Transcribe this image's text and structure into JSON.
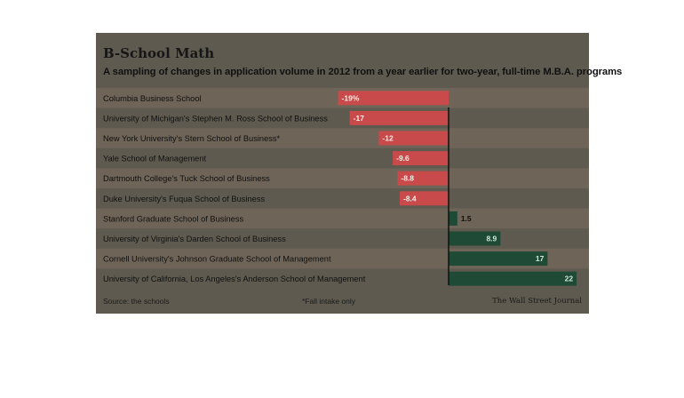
{
  "title": "B-School Math",
  "subtitle": "A sampling of changes in application volume in 2012 from a year earlier for two-year, full-time M.B.A. programs",
  "source": "Source: the schools",
  "footnote": "*Fall intake only",
  "publisher": "The Wall Street Journal",
  "colors": {
    "negative_bar": "#c94a4a",
    "negative_bar_highlight": "#f0353d",
    "positive_bar": "#1f4a36",
    "positive_bar_highlight": "#6ad79a",
    "row_band": "#6e6457",
    "zero_line": "#111111"
  },
  "chart_data": {
    "type": "bar",
    "orientation": "horizontal",
    "categories": [
      "Columbia Business School",
      "University of Michigan's Stephen M. Ross School of Business",
      "New York University's Stern School of Business*",
      "Yale School of Management",
      "Dartmouth College's Tuck School of Business",
      "Duke University's Fuqua School of Business",
      "Stanford Graduate School of Business",
      "University of Virginia's Darden School of Business",
      "Cornell University's Johnson Graduate School of Management",
      "University of California, Los Angeles's Anderson School of Management"
    ],
    "values": [
      -19,
      -17,
      -12,
      -9.6,
      -8.8,
      -8.4,
      1.5,
      8.9,
      17,
      22
    ],
    "data_labels": [
      "-19%",
      "-17",
      "-12",
      "-9.6",
      "-8.8",
      "-8.4",
      "1.5",
      "8.9",
      "17",
      "22"
    ],
    "xlim": [
      -20,
      23
    ],
    "grid": false,
    "legend": "none"
  }
}
